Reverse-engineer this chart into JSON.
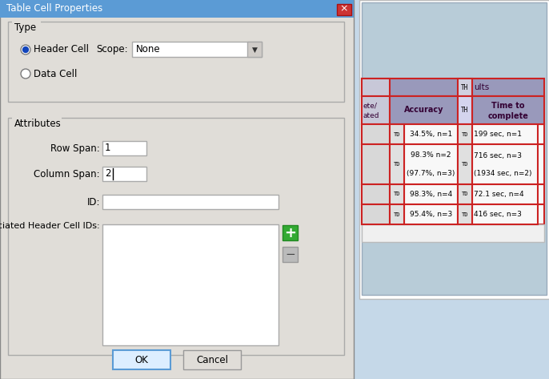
{
  "title_bar_text": "Table Cell Properties",
  "type_group_label": "Type",
  "radio1": "Header Cell",
  "radio2": "Data Cell",
  "scope_label": "Scope:",
  "scope_value": "None",
  "attr_group_label": "Attributes",
  "row_span_label": "Row Span:",
  "row_span_value": "1",
  "col_span_label": "Column Span:",
  "col_span_value": "2",
  "id_label": "ID:",
  "assoc_label": "Associated Header Cell IDs:",
  "ok_btn": "OK",
  "cancel_btn": "Cancel",
  "bg_color": "#c5d8e8",
  "dialog_bg": "#e0ddd8",
  "dialog_border": "#888888",
  "title_bar_bg": "#5b9bd5",
  "title_bar_text_color": "#ffffff",
  "close_btn_bg": "#cc3333",
  "group_border_color": "#aaaaaa",
  "input_bg": "#ffffff",
  "input_border": "#aaaaaa",
  "dropdown_arrow_bg": "#d0ccc8",
  "ok_btn_border": "#5b9bd5",
  "ok_btn_bg": "#ddeeff",
  "cancel_btn_bg": "#e0ddd8",
  "plus_bg": "#33aa33",
  "minus_bg": "#bbbbbb",
  "table_header_bg": "#9999bb",
  "table_th_bg": "#c0c0dd",
  "table_cell_bg": "#f0f0f0",
  "table_left_col_bg": "#c8c8d8",
  "table_border": "#cc2222",
  "table_outer_bg": "#b8ccd8",
  "table_td_bg": "#e0e0e0",
  "table_text_dark": "#330033",
  "table_white_bg": "#f8f8f8"
}
